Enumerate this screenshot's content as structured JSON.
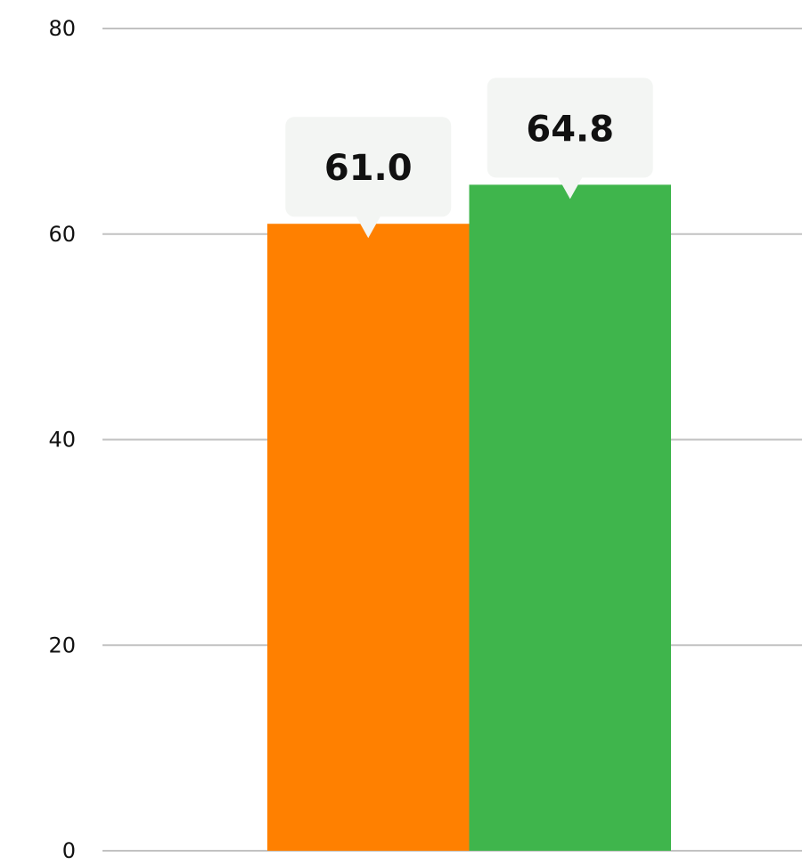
{
  "chart_data": {
    "type": "bar",
    "title": "",
    "xlabel": "",
    "ylabel": "",
    "ylim": [
      0,
      80
    ],
    "yticks": [
      0,
      20,
      40,
      60,
      80
    ],
    "grid": true,
    "legend": "none",
    "categories": [
      ""
    ],
    "series": [
      {
        "values": [
          61.0
        ],
        "color": "#ff8000",
        "label": "61.0"
      },
      {
        "values": [
          64.8
        ],
        "color": "#3fb54c",
        "label": "64.8"
      }
    ]
  }
}
